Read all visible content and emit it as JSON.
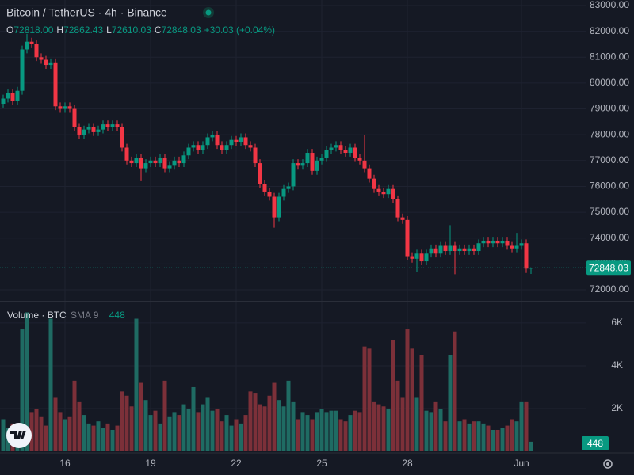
{
  "chart_data": {
    "type": "candlestick",
    "title": "Bitcoin / TetherUS · 4h · Binance",
    "ohlc_legend": [
      {
        "key": "O",
        "value": "72818.00"
      },
      {
        "key": "H",
        "value": "72862.43"
      },
      {
        "key": "L",
        "value": "72610.03"
      },
      {
        "key": "C",
        "value": "72848.03"
      }
    ],
    "change": "+30.03 (+0.04%)",
    "volume_title": "Volume · BTC",
    "volume_sma": "SMA 9",
    "up_color": "#089981",
    "down_color": "#f23645",
    "volume_up_color": "#1f6b63",
    "volume_down_color": "#7c3039",
    "categories": [
      null,
      null,
      null,
      null,
      null,
      null,
      null,
      null,
      null,
      null,
      null,
      null,
      null,
      "16",
      null,
      null,
      null,
      null,
      null,
      null,
      null,
      null,
      null,
      null,
      null,
      null,
      null,
      null,
      null,
      null,
      null,
      "19",
      null,
      null,
      null,
      null,
      null,
      null,
      null,
      null,
      null,
      null,
      null,
      null,
      null,
      null,
      null,
      null,
      null,
      "22",
      null,
      null,
      null,
      null,
      null,
      null,
      null,
      null,
      null,
      null,
      null,
      null,
      null,
      null,
      null,
      null,
      null,
      "25",
      null,
      null,
      null,
      null,
      null,
      null,
      null,
      null,
      null,
      null,
      null,
      null,
      null,
      null,
      null,
      null,
      null,
      "28",
      null,
      null,
      null,
      null,
      null,
      null,
      null,
      null,
      null,
      null,
      null,
      null,
      null,
      null,
      null,
      null,
      null,
      null,
      null,
      null,
      null,
      null,
      null,
      "Jun",
      null,
      null
    ],
    "ohlc": [
      [
        79200,
        79550,
        79050,
        79400
      ],
      [
        79400,
        79750,
        79250,
        79600
      ],
      [
        79600,
        79750,
        79150,
        79300
      ],
      [
        79300,
        79850,
        79150,
        79700
      ],
      [
        79700,
        81450,
        79550,
        81300
      ],
      [
        81300,
        81900,
        81150,
        81600
      ],
      [
        81600,
        81750,
        81350,
        81500
      ],
      [
        81500,
        81650,
        80850,
        81000
      ],
      [
        81000,
        81150,
        80750,
        80900
      ],
      [
        80900,
        81050,
        80550,
        80700
      ],
      [
        80700,
        80950,
        80550,
        80800
      ],
      [
        80800,
        80950,
        78950,
        79100
      ],
      [
        79100,
        79250,
        78850,
        79000
      ],
      [
        79000,
        79250,
        78850,
        79100
      ],
      [
        79100,
        79250,
        78850,
        79000
      ],
      [
        79000,
        79150,
        78150,
        78300
      ],
      [
        78300,
        78450,
        77850,
        78000
      ],
      [
        78000,
        78350,
        77850,
        78200
      ],
      [
        78200,
        78450,
        78050,
        78300
      ],
      [
        78300,
        78450,
        77950,
        78100
      ],
      [
        78100,
        78350,
        77950,
        78200
      ],
      [
        78200,
        78550,
        78050,
        78400
      ],
      [
        78400,
        78550,
        78150,
        78300
      ],
      [
        78300,
        78550,
        78150,
        78400
      ],
      [
        78400,
        78550,
        78150,
        78300
      ],
      [
        78300,
        78450,
        77350,
        77500
      ],
      [
        77500,
        77650,
        76850,
        77000
      ],
      [
        77000,
        77150,
        76750,
        76900
      ],
      [
        76900,
        77250,
        76750,
        77100
      ],
      [
        77100,
        77250,
        76200,
        76700
      ],
      [
        76700,
        77050,
        76550,
        76900
      ],
      [
        76900,
        77150,
        76750,
        77000
      ],
      [
        77000,
        77150,
        76750,
        76900
      ],
      [
        76900,
        77250,
        76750,
        77100
      ],
      [
        77100,
        77250,
        76550,
        76700
      ],
      [
        76700,
        76950,
        76550,
        76800
      ],
      [
        76800,
        77150,
        76650,
        77000
      ],
      [
        77000,
        77150,
        76750,
        76900
      ],
      [
        76900,
        77350,
        76750,
        77200
      ],
      [
        77200,
        77650,
        77050,
        77500
      ],
      [
        77500,
        77750,
        77350,
        77600
      ],
      [
        77600,
        77750,
        77250,
        77400
      ],
      [
        77400,
        77750,
        77250,
        77600
      ],
      [
        77600,
        78050,
        77450,
        77900
      ],
      [
        77900,
        78150,
        77750,
        78000
      ],
      [
        78000,
        78150,
        77450,
        77600
      ],
      [
        77600,
        77750,
        77250,
        77400
      ],
      [
        77400,
        77750,
        77250,
        77600
      ],
      [
        77600,
        77950,
        77450,
        77800
      ],
      [
        77800,
        77950,
        77550,
        77700
      ],
      [
        77700,
        78050,
        77550,
        77900
      ],
      [
        77900,
        78050,
        77450,
        77600
      ],
      [
        77600,
        77750,
        77350,
        77500
      ],
      [
        77500,
        77650,
        76750,
        76900
      ],
      [
        76900,
        77050,
        75950,
        76100
      ],
      [
        76100,
        76250,
        75650,
        75800
      ],
      [
        75800,
        75950,
        75450,
        75600
      ],
      [
        75600,
        75750,
        74400,
        74800
      ],
      [
        74800,
        75750,
        74650,
        75600
      ],
      [
        75600,
        76050,
        75450,
        75900
      ],
      [
        75900,
        76150,
        75750,
        76000
      ],
      [
        76000,
        77050,
        75850,
        76900
      ],
      [
        76900,
        77050,
        76650,
        76800
      ],
      [
        76800,
        77050,
        76650,
        76900
      ],
      [
        76900,
        77450,
        76750,
        77300
      ],
      [
        77300,
        77450,
        76450,
        76600
      ],
      [
        76600,
        77150,
        76450,
        77000
      ],
      [
        77000,
        77250,
        76850,
        77100
      ],
      [
        77100,
        77550,
        76950,
        77400
      ],
      [
        77400,
        77650,
        77250,
        77500
      ],
      [
        77500,
        77750,
        77350,
        77600
      ],
      [
        77600,
        77750,
        77250,
        77400
      ],
      [
        77400,
        77550,
        77150,
        77300
      ],
      [
        77300,
        77650,
        77150,
        77500
      ],
      [
        77500,
        77650,
        76950,
        77100
      ],
      [
        77100,
        77250,
        76850,
        77000
      ],
      [
        77000,
        78000,
        76550,
        76700
      ],
      [
        76700,
        76850,
        76150,
        76300
      ],
      [
        76300,
        76450,
        75750,
        75900
      ],
      [
        75900,
        76050,
        75650,
        75800
      ],
      [
        75800,
        75950,
        75550,
        75700
      ],
      [
        75700,
        76050,
        75550,
        75900
      ],
      [
        75900,
        76050,
        75350,
        75500
      ],
      [
        75500,
        75650,
        74650,
        74800
      ],
      [
        74800,
        74950,
        74550,
        74700
      ],
      [
        74700,
        74850,
        73150,
        73300
      ],
      [
        73300,
        73450,
        73050,
        73200
      ],
      [
        73200,
        73550,
        72700,
        73400
      ],
      [
        73400,
        73550,
        72950,
        73100
      ],
      [
        73100,
        73550,
        72950,
        73400
      ],
      [
        73400,
        73750,
        73250,
        73600
      ],
      [
        73600,
        73750,
        73250,
        73400
      ],
      [
        73400,
        73850,
        73250,
        73700
      ],
      [
        73700,
        73850,
        73350,
        73500
      ],
      [
        73500,
        74500,
        73350,
        73700
      ],
      [
        73700,
        73850,
        72600,
        73500
      ],
      [
        73500,
        73750,
        73350,
        73600
      ],
      [
        73600,
        73750,
        73350,
        73500
      ],
      [
        73500,
        73750,
        73350,
        73600
      ],
      [
        73600,
        73750,
        73350,
        73500
      ],
      [
        73500,
        73950,
        73350,
        73800
      ],
      [
        73800,
        74050,
        73650,
        73900
      ],
      [
        73900,
        74050,
        73650,
        73800
      ],
      [
        73800,
        74050,
        73650,
        73900
      ],
      [
        73900,
        74050,
        73650,
        73800
      ],
      [
        73800,
        74050,
        73650,
        73900
      ],
      [
        73900,
        74050,
        73550,
        73700
      ],
      [
        73700,
        73850,
        73450,
        73600
      ],
      [
        73600,
        74200,
        73450,
        73700
      ],
      [
        73700,
        73950,
        73550,
        73800
      ],
      [
        73800,
        73950,
        72650,
        72818
      ],
      [
        72818,
        72862.43,
        72610.03,
        72848.03
      ]
    ],
    "volumes": [
      1500,
      1100,
      1300,
      900,
      5700,
      6500,
      1800,
      2000,
      1600,
      1200,
      6200,
      2500,
      1800,
      1500,
      1600,
      3300,
      2300,
      1700,
      1300,
      1200,
      1400,
      1100,
      1300,
      1000,
      1200,
      2800,
      2600,
      2100,
      6200,
      3200,
      2400,
      1700,
      1900,
      1300,
      3300,
      1600,
      1800,
      1700,
      2200,
      2000,
      3000,
      1800,
      2200,
      2500,
      1900,
      2000,
      1400,
      1700,
      1200,
      1500,
      1300,
      1700,
      2800,
      2700,
      2200,
      2100,
      2600,
      3200,
      2400,
      2100,
      3300,
      2300,
      1500,
      1800,
      1700,
      1500,
      1800,
      2000,
      1800,
      1900,
      1900,
      1500,
      1400,
      1700,
      1900,
      1800,
      4900,
      4800,
      2300,
      2200,
      2100,
      2000,
      5200,
      3300,
      2500,
      5700,
      4800,
      2500,
      4500,
      1900,
      1800,
      2300,
      2000,
      1400,
      4500,
      5600,
      1400,
      1500,
      1300,
      1400,
      1400,
      1300,
      1200,
      1000,
      1000,
      1100,
      1200,
      1500,
      1400,
      2300,
      2300,
      448
    ],
    "ylim": [
      71570,
      83215
    ],
    "yticks": [
      {
        "value": 72000,
        "label": "72000.00"
      },
      {
        "value": 73000,
        "label": "73000.00"
      },
      {
        "value": 74000,
        "label": "74000.00"
      },
      {
        "value": 75000,
        "label": "75000.00"
      },
      {
        "value": 76000,
        "label": "76000.00"
      },
      {
        "value": 77000,
        "label": "77000.00"
      },
      {
        "value": 78000,
        "label": "78000.00"
      },
      {
        "value": 79000,
        "label": "79000.00"
      },
      {
        "value": 80000,
        "label": "80000.00"
      },
      {
        "value": 81000,
        "label": "81000.00"
      },
      {
        "value": 82000,
        "label": "82000.00"
      },
      {
        "value": 83000,
        "label": "83000.00"
      }
    ],
    "volume_lim": [
      0,
      6960
    ],
    "volume_ticks": [
      {
        "value": 2000,
        "label": "2K"
      },
      {
        "value": 4000,
        "label": "4K"
      },
      {
        "value": 6000,
        "label": "6K"
      }
    ],
    "grid": true
  }
}
